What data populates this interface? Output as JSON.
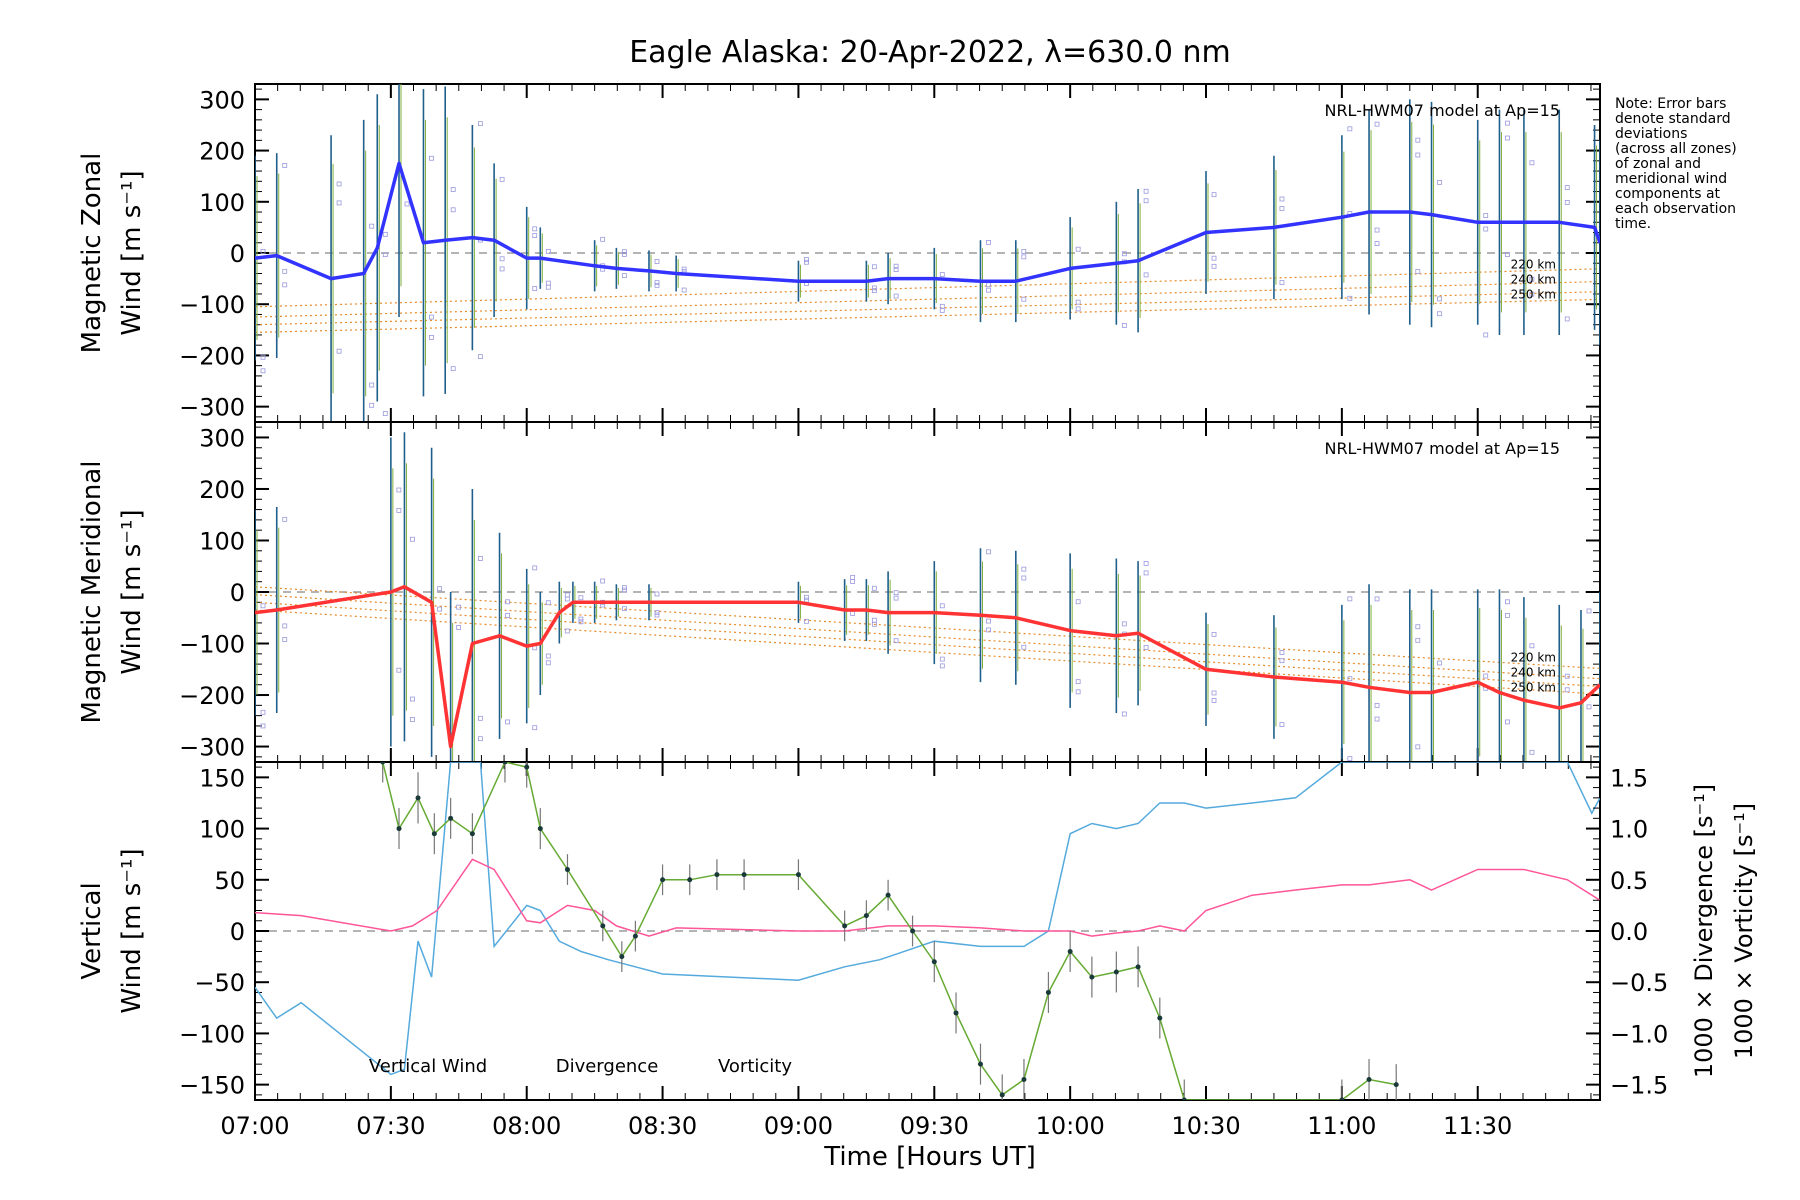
{
  "chart_data": {
    "type": "line",
    "title": "Eagle Alaska: 20-Apr-2022, λ=630.0 nm",
    "xlabel": "Time [Hours UT]",
    "xlim": [
      7.0,
      11.95
    ],
    "x_ticks": [
      {
        "v": 7.0,
        "label": "07:00"
      },
      {
        "v": 7.5,
        "label": "07:30"
      },
      {
        "v": 8.0,
        "label": "08:00"
      },
      {
        "v": 8.5,
        "label": "08:30"
      },
      {
        "v": 9.0,
        "label": "09:00"
      },
      {
        "v": 9.5,
        "label": "09:30"
      },
      {
        "v": 10.0,
        "label": "10:00"
      },
      {
        "v": 10.5,
        "label": "10:30"
      },
      {
        "v": 11.0,
        "label": "11:00"
      },
      {
        "v": 11.5,
        "label": "11:30"
      }
    ],
    "note": [
      "Note: Error bars",
      "denote standard",
      "deviations",
      "(across all zones)",
      "of zonal and",
      "meridional wind",
      "components at",
      "each observation",
      "time."
    ],
    "panels": [
      {
        "id": "zonal",
        "ylabel_line1": "Magnetic Zonal",
        "ylabel_line2": "Wind [m s⁻¹]",
        "ylim": [
          -330,
          330
        ],
        "y_ticks": [
          300,
          200,
          100,
          0,
          -100,
          -200,
          -300
        ],
        "tick_labels": [
          "300",
          "200",
          "100",
          "0",
          "−100",
          "−200",
          "−300"
        ],
        "model_label": "NRL-HWM07 model at Ap=15",
        "altitudes": [
          "220 km",
          "240 km",
          "250 km"
        ],
        "series": {
          "color": "#3333ff",
          "x": [
            7.0,
            7.08,
            7.28,
            7.4,
            7.45,
            7.53,
            7.62,
            7.7,
            7.8,
            7.88,
            8.0,
            8.05,
            8.25,
            8.33,
            8.45,
            8.55,
            9.0,
            9.25,
            9.33,
            9.5,
            9.67,
            9.8,
            10.0,
            10.17,
            10.25,
            10.5,
            10.75,
            11.0,
            11.1,
            11.25,
            11.33,
            11.5,
            11.58,
            11.67,
            11.8,
            11.93,
            11.95
          ],
          "y": [
            -10,
            -5,
            -50,
            -40,
            10,
            175,
            20,
            25,
            30,
            25,
            -10,
            -10,
            -25,
            -30,
            -35,
            -40,
            -55,
            -55,
            -50,
            -50,
            -55,
            -55,
            -30,
            -20,
            -15,
            40,
            50,
            70,
            80,
            80,
            75,
            60,
            60,
            60,
            60,
            50,
            20
          ],
          "error": [
            200,
            200,
            280,
            300,
            300,
            300,
            300,
            300,
            220,
            150,
            100,
            60,
            50,
            40,
            40,
            35,
            40,
            40,
            50,
            60,
            80,
            80,
            100,
            120,
            140,
            120,
            140,
            160,
            200,
            220,
            220,
            200,
            220,
            220,
            220,
            200,
            200
          ]
        },
        "model_lines": [
          {
            "x": [
              7.0,
              12.0
            ],
            "y": [
              -105,
              -30
            ]
          },
          {
            "x": [
              7.0,
              12.0
            ],
            "y": [
              -125,
              -55
            ]
          },
          {
            "x": [
              7.0,
              12.0
            ],
            "y": [
              -140,
              -75
            ]
          },
          {
            "x": [
              7.0,
              12.0
            ],
            "y": [
              -155,
              -90
            ]
          }
        ]
      },
      {
        "id": "meridional",
        "ylabel_line1": "Magnetic Meridional",
        "ylabel_line2": "Wind [m s⁻¹]",
        "ylim": [
          -330,
          330
        ],
        "y_ticks": [
          300,
          200,
          100,
          0,
          -100,
          -200,
          -300
        ],
        "tick_labels": [
          "300",
          "200",
          "100",
          "0",
          "−100",
          "−200",
          "−300"
        ],
        "model_label": "NRL-HWM07 model at Ap=15",
        "altitudes": [
          "220 km",
          "240 km",
          "250 km"
        ],
        "series": {
          "color": "#ff3333",
          "x": [
            7.0,
            7.08,
            7.5,
            7.55,
            7.65,
            7.72,
            7.8,
            7.9,
            8.0,
            8.05,
            8.12,
            8.17,
            8.25,
            8.33,
            8.45,
            9.0,
            9.17,
            9.25,
            9.33,
            9.5,
            9.67,
            9.8,
            10.0,
            10.17,
            10.25,
            10.5,
            10.75,
            11.0,
            11.1,
            11.25,
            11.33,
            11.5,
            11.58,
            11.67,
            11.8,
            11.88,
            11.95
          ],
          "y": [
            -40,
            -35,
            0,
            10,
            -20,
            -300,
            -100,
            -85,
            -105,
            -100,
            -40,
            -20,
            -20,
            -20,
            -20,
            -20,
            -35,
            -35,
            -40,
            -40,
            -45,
            -50,
            -75,
            -85,
            -80,
            -150,
            -165,
            -175,
            -185,
            -195,
            -195,
            -175,
            -195,
            -210,
            -225,
            -215,
            -180
          ],
          "error": [
            200,
            200,
            300,
            300,
            300,
            300,
            300,
            200,
            150,
            100,
            60,
            40,
            40,
            35,
            35,
            40,
            60,
            60,
            80,
            100,
            130,
            130,
            150,
            150,
            140,
            110,
            120,
            150,
            200,
            200,
            200,
            180,
            200,
            200,
            200,
            180,
            180
          ]
        },
        "model_lines": [
          {
            "x": [
              7.0,
              12.0
            ],
            "y": [
              10,
              -150
            ]
          },
          {
            "x": [
              7.0,
              12.0
            ],
            "y": [
              -5,
              -170
            ]
          },
          {
            "x": [
              7.0,
              12.0
            ],
            "y": [
              -20,
              -185
            ]
          },
          {
            "x": [
              7.0,
              12.0
            ],
            "y": [
              -35,
              -200
            ]
          }
        ]
      },
      {
        "id": "vertical",
        "ylabel_line1": "Vertical",
        "ylabel_line2": "Wind [m s⁻¹]",
        "ylim": [
          -165,
          165
        ],
        "y_ticks": [
          150,
          100,
          50,
          0,
          -50,
          -100,
          -150
        ],
        "tick_labels": [
          "150",
          "100",
          "50",
          "0",
          "−50",
          "−100",
          "−150"
        ],
        "right_ylabel_div": "1000 × Divergence [s⁻¹]",
        "right_ylabel_vort": "1000 × Vorticity [s⁻¹]",
        "right_lim": [
          -1.65,
          1.65
        ],
        "right_ticks": [
          1.5,
          1.0,
          0.5,
          0.0,
          -0.5,
          -1.0,
          -1.5
        ],
        "right_tick_labels": [
          "1.5",
          "1.0",
          "0.5",
          "0.0",
          "−0.5",
          "−1.0",
          "−1.5"
        ],
        "legend": [
          "Vertical Wind",
          "Divergence",
          "Vorticity"
        ],
        "vertical_wind": {
          "color": "#66aa33",
          "x": [
            7.47,
            7.53,
            7.6,
            7.66,
            7.72,
            7.8,
            7.92,
            8.0,
            8.05,
            8.15,
            8.28,
            8.35,
            8.4,
            8.5,
            8.6,
            8.7,
            8.8,
            9.0,
            9.17,
            9.25,
            9.33,
            9.42,
            9.5,
            9.58,
            9.67,
            9.75,
            9.83,
            9.92,
            10.0,
            10.08,
            10.17,
            10.25,
            10.33,
            10.42,
            11.0,
            11.1,
            11.2
          ],
          "y": [
            165,
            100,
            130,
            95,
            110,
            95,
            165,
            160,
            100,
            60,
            5,
            -25,
            -5,
            50,
            50,
            55,
            55,
            55,
            5,
            15,
            35,
            0,
            -30,
            -80,
            -130,
            -160,
            -145,
            -60,
            -20,
            -45,
            -40,
            -35,
            -85,
            -165,
            -165,
            -145,
            -150
          ],
          "error": [
            20,
            20,
            25,
            20,
            20,
            20,
            20,
            20,
            20,
            15,
            15,
            15,
            15,
            15,
            15,
            15,
            15,
            15,
            15,
            15,
            15,
            15,
            20,
            20,
            20,
            20,
            20,
            20,
            20,
            20,
            20,
            20,
            20,
            20,
            20,
            20,
            20
          ]
        },
        "divergence": {
          "color": "#55aadd",
          "x": [
            7.0,
            7.08,
            7.17,
            7.5,
            7.55,
            7.6,
            7.65,
            7.72,
            7.83,
            7.88,
            8.0,
            8.05,
            8.12,
            8.2,
            8.3,
            8.5,
            9.0,
            9.17,
            9.3,
            9.5,
            9.67,
            9.83,
            9.92,
            10.0,
            10.08,
            10.17,
            10.25,
            10.33,
            10.42,
            10.5,
            10.67,
            10.83,
            11.0,
            11.1,
            11.25,
            11.5,
            11.67,
            11.83,
            11.92,
            11.95
          ],
          "y": [
            -0.55,
            -0.85,
            -0.7,
            -1.4,
            -1.35,
            -0.1,
            -0.45,
            1.65,
            1.65,
            -0.15,
            0.25,
            0.2,
            -0.1,
            -0.2,
            -0.28,
            -0.42,
            -0.48,
            -0.35,
            -0.28,
            -0.1,
            -0.15,
            -0.15,
            0.0,
            0.95,
            1.05,
            1.0,
            1.05,
            1.25,
            1.25,
            1.2,
            1.25,
            1.3,
            1.65,
            1.65,
            1.65,
            1.65,
            1.65,
            1.65,
            1.15,
            1.3
          ]
        },
        "vorticity": {
          "color": "#ff5599",
          "x": [
            7.0,
            7.17,
            7.5,
            7.58,
            7.67,
            7.8,
            7.88,
            8.0,
            8.05,
            8.15,
            8.25,
            8.33,
            8.45,
            8.55,
            9.0,
            9.17,
            9.33,
            9.5,
            9.67,
            9.83,
            10.0,
            10.08,
            10.17,
            10.25,
            10.33,
            10.42,
            10.5,
            10.67,
            10.83,
            11.0,
            11.1,
            11.25,
            11.33,
            11.5,
            11.58,
            11.67,
            11.83,
            11.95
          ],
          "y": [
            0.18,
            0.15,
            0.0,
            0.05,
            0.2,
            0.7,
            0.6,
            0.1,
            0.08,
            0.25,
            0.2,
            0.05,
            -0.05,
            0.03,
            0.0,
            0.0,
            0.05,
            0.05,
            0.03,
            0.0,
            0.0,
            -0.05,
            -0.02,
            0.0,
            0.05,
            0.0,
            0.2,
            0.35,
            0.4,
            0.45,
            0.45,
            0.5,
            0.4,
            0.6,
            0.6,
            0.6,
            0.5,
            0.3
          ]
        }
      }
    ]
  }
}
